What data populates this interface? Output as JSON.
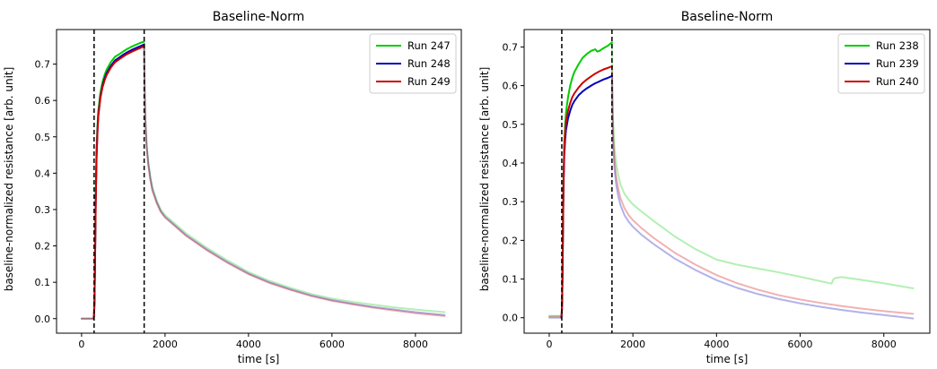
{
  "chart_data": [
    {
      "type": "line",
      "title": "Baseline-Norm",
      "xlabel": "time [s]",
      "ylabel": "baseline-normalized resistance [arb. unit]",
      "xlim": [
        -600,
        9100
      ],
      "ylim": [
        -0.04,
        0.795
      ],
      "xticks": [
        0,
        2000,
        4000,
        6000,
        8000
      ],
      "yticks": [
        0.0,
        0.1,
        0.2,
        0.3,
        0.4,
        0.5,
        0.6,
        0.7
      ],
      "vlines": [
        300,
        1500
      ],
      "legend_position": "top-right",
      "grid": false,
      "exposure_window": [
        300,
        1500
      ],
      "recovery_alpha": 0.3,
      "series": [
        {
          "name": "Run 247",
          "color": "#00cc00",
          "x": [
            0,
            290,
            300,
            310,
            320,
            340,
            360,
            380,
            400,
            450,
            500,
            550,
            600,
            700,
            800,
            900,
            1000,
            1100,
            1200,
            1300,
            1400,
            1500,
            1510,
            1530,
            1560,
            1600,
            1650,
            1700,
            1800,
            1900,
            2000,
            2200,
            2500,
            3000,
            3500,
            4000,
            4500,
            5000,
            5500,
            6000,
            6500,
            7000,
            7500,
            8000,
            8700
          ],
          "y": [
            0.0,
            0.0,
            0.01,
            0.05,
            0.15,
            0.35,
            0.47,
            0.53,
            0.57,
            0.62,
            0.65,
            0.67,
            0.685,
            0.705,
            0.72,
            0.727,
            0.735,
            0.742,
            0.748,
            0.753,
            0.758,
            0.762,
            0.65,
            0.55,
            0.48,
            0.43,
            0.39,
            0.36,
            0.325,
            0.3,
            0.285,
            0.265,
            0.235,
            0.195,
            0.16,
            0.128,
            0.104,
            0.085,
            0.068,
            0.055,
            0.046,
            0.038,
            0.031,
            0.025,
            0.018
          ]
        },
        {
          "name": "Run 248",
          "color": "#0000bb",
          "x": [
            0,
            290,
            300,
            310,
            320,
            340,
            360,
            380,
            400,
            450,
            500,
            550,
            600,
            700,
            800,
            900,
            1000,
            1100,
            1200,
            1300,
            1400,
            1500,
            1510,
            1530,
            1560,
            1600,
            1650,
            1700,
            1800,
            1900,
            2000,
            2200,
            2500,
            3000,
            3500,
            4000,
            4500,
            5000,
            5500,
            6000,
            6500,
            7000,
            7500,
            8000,
            8700
          ],
          "y": [
            0.0,
            0.0,
            0.01,
            0.05,
            0.14,
            0.33,
            0.45,
            0.52,
            0.56,
            0.61,
            0.64,
            0.66,
            0.675,
            0.695,
            0.71,
            0.718,
            0.726,
            0.733,
            0.739,
            0.744,
            0.749,
            0.754,
            0.645,
            0.545,
            0.475,
            0.425,
            0.385,
            0.355,
            0.32,
            0.295,
            0.28,
            0.26,
            0.23,
            0.19,
            0.155,
            0.124,
            0.1,
            0.081,
            0.064,
            0.051,
            0.041,
            0.032,
            0.025,
            0.018,
            0.01
          ]
        },
        {
          "name": "Run 249",
          "color": "#cc0000",
          "x": [
            0,
            290,
            300,
            310,
            320,
            340,
            360,
            380,
            400,
            450,
            500,
            550,
            600,
            700,
            800,
            900,
            1000,
            1100,
            1200,
            1300,
            1400,
            1500,
            1510,
            1530,
            1560,
            1600,
            1650,
            1700,
            1800,
            1900,
            2000,
            2200,
            2500,
            3000,
            3500,
            4000,
            4500,
            5000,
            5500,
            6000,
            6500,
            7000,
            7500,
            8000,
            8700
          ],
          "y": [
            0.0,
            0.0,
            0.01,
            0.05,
            0.14,
            0.32,
            0.44,
            0.51,
            0.555,
            0.605,
            0.635,
            0.655,
            0.67,
            0.69,
            0.705,
            0.713,
            0.721,
            0.728,
            0.734,
            0.739,
            0.744,
            0.749,
            0.64,
            0.54,
            0.47,
            0.42,
            0.38,
            0.35,
            0.318,
            0.293,
            0.278,
            0.258,
            0.228,
            0.188,
            0.153,
            0.122,
            0.098,
            0.079,
            0.062,
            0.049,
            0.039,
            0.03,
            0.022,
            0.015,
            0.007
          ]
        }
      ]
    },
    {
      "type": "line",
      "title": "Baseline-Norm",
      "xlabel": "time [s]",
      "ylabel": "baseline-normalized resistance [arb. unit]",
      "xlim": [
        -600,
        9100
      ],
      "ylim": [
        -0.04,
        0.745
      ],
      "xticks": [
        0,
        2000,
        4000,
        6000,
        8000
      ],
      "yticks": [
        0.0,
        0.1,
        0.2,
        0.3,
        0.4,
        0.5,
        0.6,
        0.7
      ],
      "vlines": [
        300,
        1500
      ],
      "legend_position": "top-right",
      "grid": false,
      "exposure_window": [
        300,
        1500
      ],
      "recovery_alpha": 0.3,
      "series": [
        {
          "name": "Run 238",
          "color": "#00cc00",
          "x": [
            0,
            290,
            300,
            310,
            320,
            340,
            360,
            380,
            400,
            450,
            500,
            550,
            600,
            700,
            800,
            900,
            1000,
            1100,
            1150,
            1200,
            1300,
            1400,
            1500,
            1510,
            1530,
            1560,
            1600,
            1650,
            1700,
            1800,
            1900,
            2000,
            2200,
            2500,
            3000,
            3500,
            4000,
            4500,
            5000,
            5500,
            6000,
            6500,
            6750,
            6800,
            6850,
            7000,
            7500,
            8000,
            8700
          ],
          "y": [
            0.005,
            0.005,
            0.01,
            0.05,
            0.15,
            0.36,
            0.45,
            0.5,
            0.53,
            0.57,
            0.6,
            0.62,
            0.635,
            0.655,
            0.672,
            0.682,
            0.69,
            0.694,
            0.688,
            0.69,
            0.697,
            0.703,
            0.712,
            0.6,
            0.5,
            0.44,
            0.4,
            0.37,
            0.345,
            0.32,
            0.305,
            0.293,
            0.275,
            0.25,
            0.21,
            0.177,
            0.15,
            0.137,
            0.127,
            0.117,
            0.106,
            0.094,
            0.088,
            0.1,
            0.103,
            0.105,
            0.097,
            0.089,
            0.076
          ]
        },
        {
          "name": "Run 239",
          "color": "#0000bb",
          "x": [
            0,
            290,
            300,
            310,
            320,
            340,
            360,
            380,
            400,
            450,
            500,
            550,
            600,
            700,
            800,
            900,
            1000,
            1100,
            1200,
            1300,
            1400,
            1500,
            1510,
            1530,
            1560,
            1600,
            1650,
            1700,
            1800,
            1900,
            2000,
            2200,
            2500,
            3000,
            3500,
            4000,
            4500,
            5000,
            5500,
            6000,
            6500,
            7000,
            7500,
            8000,
            8700
          ],
          "y": [
            0.0,
            0.0,
            0.01,
            0.05,
            0.14,
            0.33,
            0.42,
            0.46,
            0.485,
            0.515,
            0.535,
            0.55,
            0.56,
            0.575,
            0.585,
            0.593,
            0.6,
            0.606,
            0.611,
            0.616,
            0.62,
            0.625,
            0.53,
            0.44,
            0.385,
            0.345,
            0.315,
            0.292,
            0.265,
            0.248,
            0.235,
            0.215,
            0.19,
            0.153,
            0.123,
            0.097,
            0.077,
            0.061,
            0.048,
            0.037,
            0.028,
            0.02,
            0.013,
            0.007,
            -0.002
          ]
        },
        {
          "name": "Run 240",
          "color": "#cc0000",
          "x": [
            0,
            290,
            300,
            310,
            320,
            340,
            360,
            380,
            400,
            450,
            500,
            550,
            600,
            700,
            800,
            900,
            1000,
            1100,
            1200,
            1300,
            1400,
            1500,
            1510,
            1530,
            1560,
            1600,
            1650,
            1700,
            1800,
            1900,
            2000,
            2200,
            2500,
            3000,
            3500,
            4000,
            4500,
            5000,
            5500,
            6000,
            6500,
            7000,
            7500,
            8000,
            8700
          ],
          "y": [
            0.003,
            0.003,
            0.01,
            0.05,
            0.14,
            0.34,
            0.44,
            0.48,
            0.505,
            0.535,
            0.555,
            0.57,
            0.58,
            0.595,
            0.607,
            0.616,
            0.624,
            0.631,
            0.637,
            0.642,
            0.646,
            0.65,
            0.555,
            0.465,
            0.405,
            0.365,
            0.335,
            0.31,
            0.283,
            0.265,
            0.252,
            0.232,
            0.206,
            0.168,
            0.137,
            0.11,
            0.089,
            0.072,
            0.058,
            0.047,
            0.038,
            0.03,
            0.023,
            0.017,
            0.01
          ]
        }
      ]
    }
  ]
}
